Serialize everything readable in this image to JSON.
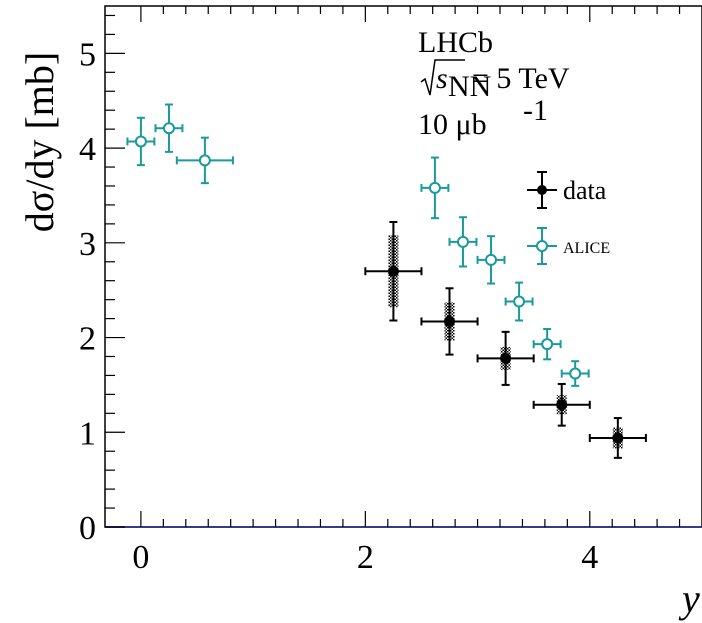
{
  "chart_data": {
    "type": "scatter",
    "xlabel": "y",
    "ylabel": "dσ/dy [mb]",
    "xlim": [
      -0.32,
      5.0
    ],
    "ylim": [
      0,
      5.5
    ],
    "x_ticks": [
      "0",
      "2",
      "4"
    ],
    "y_ticks": [
      "0",
      "1",
      "2",
      "3",
      "4",
      "5"
    ],
    "annotations": {
      "experiment": "LHCb",
      "energy_prefix": "s",
      "energy_sub": "NN",
      "energy_value": "= 5 TeV",
      "lumi_value": "10 μb",
      "lumi_exp": "-1"
    },
    "legend": {
      "placement": "top-right",
      "entries": [
        "data",
        "ALICE"
      ]
    },
    "series": [
      {
        "name": "data",
        "color": "#000000",
        "marker": "filled-circle",
        "points": [
          {
            "x": 2.25,
            "y": 2.7,
            "xerr": 0.25,
            "stat": 0.52,
            "syst": 0.38
          },
          {
            "x": 2.75,
            "y": 2.17,
            "xerr": 0.25,
            "stat": 0.35,
            "syst": 0.2
          },
          {
            "x": 3.25,
            "y": 1.78,
            "xerr": 0.25,
            "stat": 0.28,
            "syst": 0.12
          },
          {
            "x": 3.75,
            "y": 1.29,
            "xerr": 0.25,
            "stat": 0.22,
            "syst": 0.1
          },
          {
            "x": 4.25,
            "y": 0.94,
            "xerr": 0.25,
            "stat": 0.21,
            "syst": 0.11
          }
        ]
      },
      {
        "name": "ALICE",
        "color": "#1a9a9a",
        "marker": "open-circle",
        "points": [
          {
            "x": 0.0,
            "y": 4.07,
            "xerr": 0.12,
            "stat": 0.25
          },
          {
            "x": 0.25,
            "y": 4.21,
            "xerr": 0.12,
            "stat": 0.25
          },
          {
            "x": 0.57,
            "y": 3.87,
            "xerr": 0.25,
            "stat": 0.24
          },
          {
            "x": 2.62,
            "y": 3.58,
            "xerr": 0.12,
            "stat": 0.32
          },
          {
            "x": 2.87,
            "y": 3.01,
            "xerr": 0.12,
            "stat": 0.26
          },
          {
            "x": 3.12,
            "y": 2.82,
            "xerr": 0.12,
            "stat": 0.25
          },
          {
            "x": 3.37,
            "y": 2.38,
            "xerr": 0.12,
            "stat": 0.2
          },
          {
            "x": 3.62,
            "y": 1.93,
            "xerr": 0.12,
            "stat": 0.16
          },
          {
            "x": 3.87,
            "y": 1.62,
            "xerr": 0.12,
            "stat": 0.13
          }
        ]
      }
    ]
  }
}
